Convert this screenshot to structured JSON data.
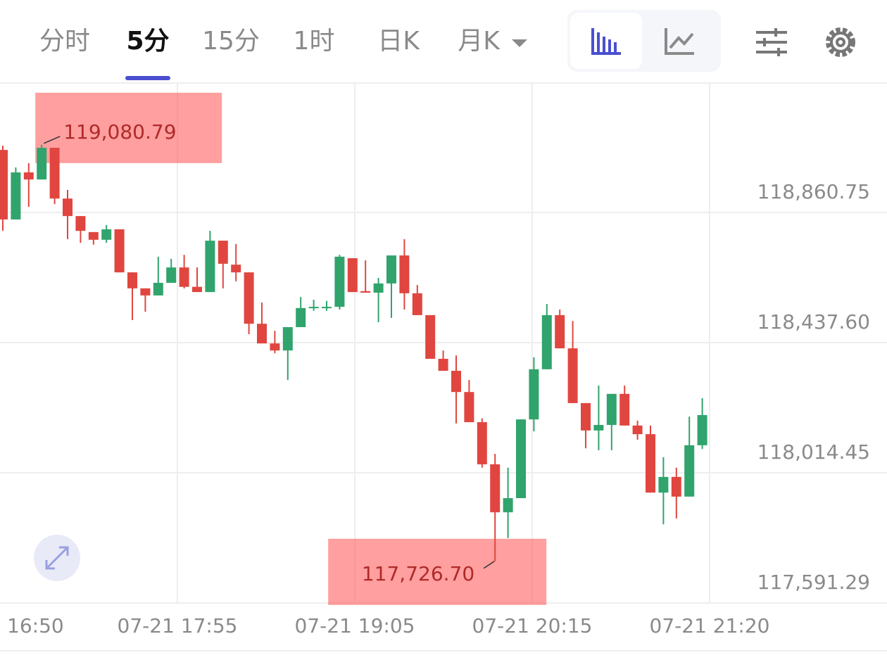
{
  "tabs": [
    "分时",
    "5分",
    "15分",
    "1时",
    "日K",
    "月K"
  ],
  "active_tab": 1,
  "chart_data": {
    "type": "candlestick",
    "up_color": "#30a46c",
    "down_color": "#e0463f",
    "open": [
      119064,
      118838,
      118991,
      118968,
      119071,
      118906,
      118849,
      118797,
      118772,
      118806,
      118666,
      118614,
      118591,
      118632,
      118682,
      118619,
      118602,
      118769,
      118691,
      118666,
      118499,
      118435,
      118412,
      118488,
      118550,
      118550,
      118554,
      118712,
      118605,
      118600,
      118630,
      118721,
      118598,
      118527,
      118385,
      118346,
      118277,
      118179,
      118042,
      117886,
      117932,
      118188,
      118351,
      118527,
      118419,
      118241,
      118152,
      118170,
      118271,
      118168,
      118140,
      117950,
      118001,
      117937,
      118104
    ],
    "high": [
      119078,
      119007,
      119021,
      119080.79,
      119071,
      118934,
      118849,
      118797,
      118820,
      118806,
      118666,
      118614,
      118717,
      118710,
      118723,
      118682,
      118801,
      118769,
      118758,
      118666,
      118568,
      118476,
      118488,
      118586,
      118577,
      118573,
      118723,
      118712,
      118705,
      118648,
      118721,
      118774,
      118625,
      118527,
      118412,
      118396,
      118316,
      118191,
      118076,
      118031,
      118188,
      118390,
      118563,
      118545,
      118508,
      118241,
      118298,
      118271,
      118298,
      118184,
      118168,
      118065,
      118031,
      118197,
      118257
    ],
    "low": [
      118801,
      118838,
      118879,
      118968,
      118888,
      118774,
      118762,
      118756,
      118762,
      118666,
      118511,
      118538,
      118591,
      118632,
      118614,
      118602,
      118602,
      118614,
      118637,
      118465,
      118435,
      118403,
      118316,
      118488,
      118541,
      118541,
      118545,
      118602,
      118600,
      118504,
      118518,
      118545,
      118527,
      118385,
      118346,
      118175,
      118179,
      118031,
      117726.7,
      117802,
      117932,
      118149,
      118351,
      118419,
      118241,
      118094,
      118088,
      118088,
      118168,
      118122,
      117950,
      117847,
      117866,
      117937,
      118092
    ],
    "close": [
      118838,
      118991,
      118968,
      119071,
      118906,
      118849,
      118801,
      118772,
      118806,
      118666,
      118614,
      118591,
      118632,
      118682,
      118619,
      118602,
      118769,
      118694,
      118666,
      118499,
      118435,
      118412,
      118488,
      118550,
      118554,
      118554,
      118717,
      118602,
      118600,
      118630,
      118721,
      118598,
      118527,
      118385,
      118346,
      118277,
      118179,
      118042,
      117886,
      117932,
      118188,
      118351,
      118527,
      118419,
      118241,
      118152,
      118170,
      118271,
      118168,
      118140,
      117950,
      118001,
      117937,
      118104,
      118202
    ],
    "ylim": [
      117591.29,
      119281.6
    ],
    "yticks": [
      {
        "value": 117591.29,
        "label": "117,591.29"
      },
      {
        "value": 118014.45,
        "label": "118,014.45"
      },
      {
        "value": 118437.6,
        "label": "118,437.60"
      },
      {
        "value": 118860.75,
        "label": "118,860.75"
      }
    ],
    "x_labels": [
      "16:50",
      "07-21 17:55",
      "07-21 19:05",
      "07-21 20:15",
      "07-21 21:20"
    ],
    "max_label": {
      "value": 119080.79,
      "label": "119,080.79"
    },
    "min_label": {
      "value": 117726.7,
      "label": "117,726.70"
    },
    "grid": true
  }
}
